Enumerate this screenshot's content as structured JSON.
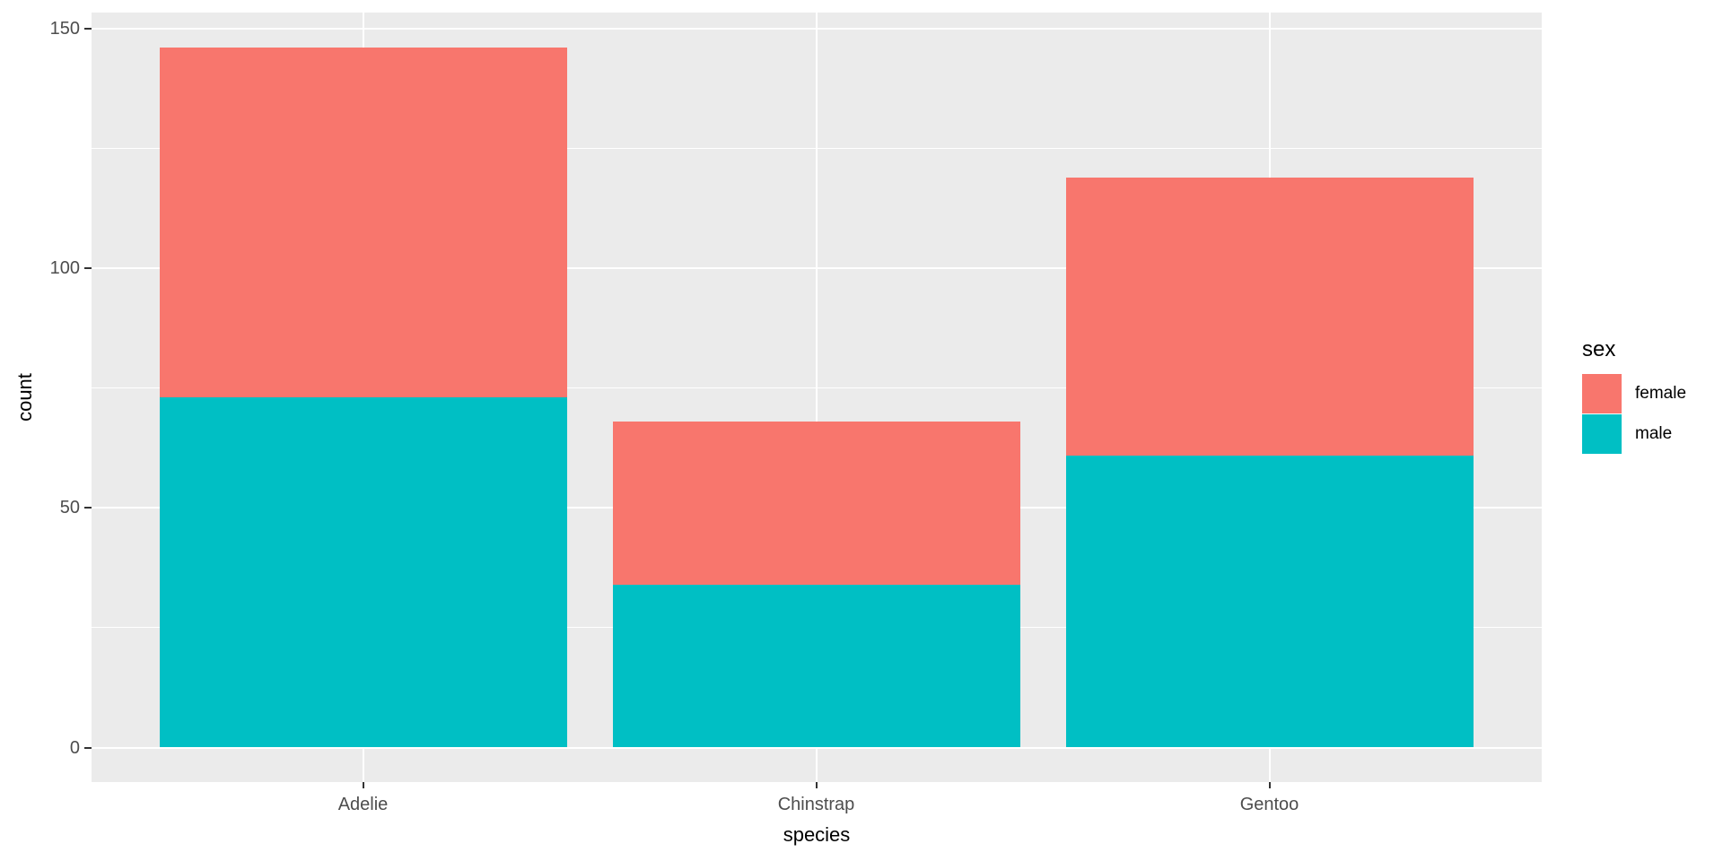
{
  "chart_data": {
    "type": "bar",
    "stacked": true,
    "xlabel": "species",
    "ylabel": "count",
    "categories": [
      "Adelie",
      "Chinstrap",
      "Gentoo"
    ],
    "series": [
      {
        "name": "male",
        "color": "#00BFC4",
        "values": [
          73,
          34,
          61
        ]
      },
      {
        "name": "female",
        "color": "#F8766D",
        "values": [
          73,
          34,
          58
        ]
      }
    ],
    "stack_totals": [
      146,
      68,
      119
    ],
    "y_ticks": [
      0,
      50,
      100,
      150
    ],
    "y_tick_labels": [
      "0",
      "50",
      "100",
      "150"
    ],
    "y_minor_gridlines": [
      25,
      75,
      125
    ],
    "ylim": [
      -7.2,
      153.3
    ],
    "grid": true,
    "legend_position": "right",
    "panel_bg": "#EBEBEB",
    "grid_color": "#FFFFFF",
    "tick_color": "#333333",
    "tick_label_color": "#4D4D4D",
    "axis_title_color": "#000000"
  },
  "legend": {
    "title": "sex",
    "items": [
      {
        "label": "female",
        "color": "#F8766D"
      },
      {
        "label": "male",
        "color": "#00BFC4"
      }
    ]
  }
}
